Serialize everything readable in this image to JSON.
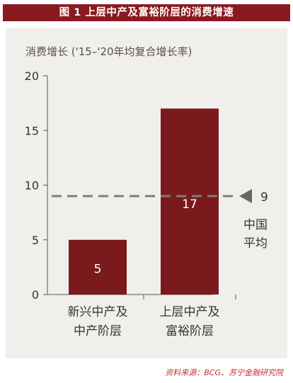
{
  "figure": {
    "title": "图 1  上层中产及富裕阶层的消费增速",
    "source": "资料来源：BCG、苏宁金融研究院"
  },
  "chart_data": {
    "type": "bar",
    "ylabel": "消费增长 ('15–'20年均复合增长率)",
    "xlabel": "",
    "categories": [
      [
        "新兴中产及",
        "中产阶层"
      ],
      [
        "上层中产及",
        "富裕阶层"
      ]
    ],
    "values": [
      5,
      17
    ],
    "data_labels": [
      "5",
      "17"
    ],
    "ylim": [
      0,
      20
    ],
    "yticks": [
      0,
      5,
      10,
      15,
      20
    ],
    "grid": false,
    "bar_color": "#7b1a1c",
    "reference_line": {
      "value": 9,
      "label": "9",
      "annotation": [
        "中国",
        "平均"
      ],
      "style": "dashed",
      "color": "#7d7d7d"
    }
  }
}
